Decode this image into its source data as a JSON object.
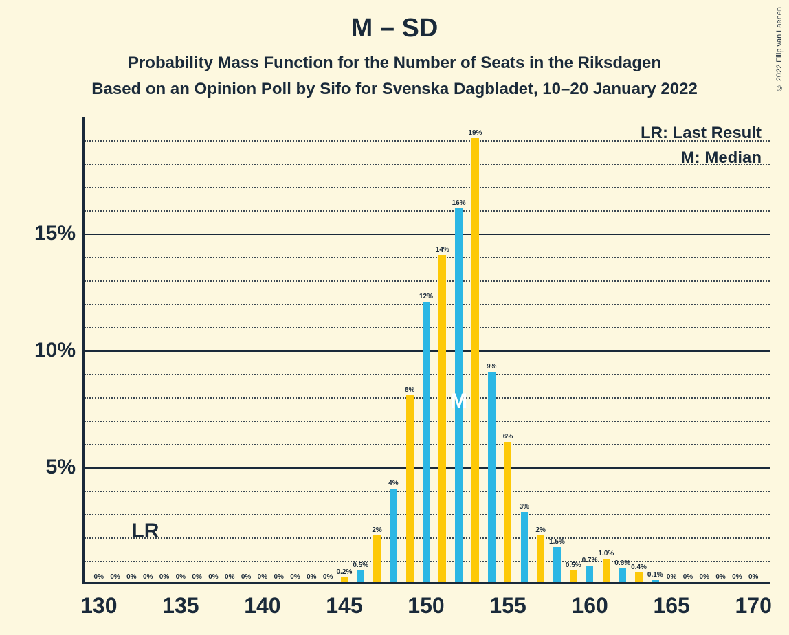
{
  "header": {
    "title": "M – SD",
    "subtitle1": "Probability Mass Function for the Number of Seats in the Riksdagen",
    "subtitle2": "Based on an Opinion Poll by Sifo for Svenska Dagbladet, 10–20 January 2022",
    "copyright": "© 2022 Filip van Laenen"
  },
  "legend": {
    "lr": "LR: Last Result",
    "m": "M: Median"
  },
  "markers": {
    "lr_text": "LR",
    "lr_x": 132,
    "m_text": "M",
    "m_x": 152
  },
  "chart": {
    "type": "bar",
    "background_color": "#fdf8df",
    "axis_color": "#1a2a3a",
    "grid_major_color": "#1a2a3a",
    "grid_minor_color": "#1a2a3a",
    "bar_colors": {
      "blue": "#2cb7e4",
      "yellow": "#fdc907"
    },
    "text_color": "#1a2a3a",
    "median_text_color": "#ffffff",
    "title_fontsize": 38,
    "subtitle_fontsize": 24,
    "axis_label_fontsize": 32,
    "y_label_fontsize": 30,
    "barlabel_fontsize": 10,
    "legend_fontsize": 24,
    "xlim": [
      129,
      171
    ],
    "ylim": [
      0,
      20
    ],
    "x_ticks": [
      130,
      135,
      140,
      145,
      150,
      155,
      160,
      165,
      170
    ],
    "y_major_ticks": [
      5,
      10,
      15
    ],
    "y_minor_step": 1,
    "bar_rel_width": 0.45,
    "x_values": [
      130,
      131,
      132,
      133,
      134,
      135,
      136,
      137,
      138,
      139,
      140,
      141,
      142,
      143,
      144,
      145,
      146,
      147,
      148,
      149,
      150,
      151,
      152,
      153,
      154,
      155,
      156,
      157,
      158,
      159,
      160,
      161,
      162,
      163,
      164,
      165,
      166,
      167,
      168,
      169,
      170
    ],
    "values": [
      0,
      0,
      0,
      0,
      0,
      0,
      0,
      0,
      0,
      0,
      0,
      0,
      0,
      0,
      0,
      0.2,
      0.5,
      2,
      4,
      8,
      12,
      14,
      16,
      19,
      9,
      6,
      3,
      2,
      1.5,
      0.5,
      0.7,
      1.0,
      0.6,
      0.4,
      0.1,
      0,
      0,
      0,
      0,
      0,
      0
    ],
    "labels": [
      "0%",
      "0%",
      "0%",
      "0%",
      "0%",
      "0%",
      "0%",
      "0%",
      "0%",
      "0%",
      "0%",
      "0%",
      "0%",
      "0%",
      "0%",
      "0.2%",
      "0.5%",
      "2%",
      "4%",
      "8%",
      "12%",
      "14%",
      "16%",
      "19%",
      "9%",
      "6%",
      "3%",
      "2%",
      "1.5%",
      "0.5%",
      "0.7%",
      "1.0%",
      "0.6%",
      "0.4%",
      "0.1%",
      "0%",
      "0%",
      "0%",
      "0%",
      "0%",
      "0%"
    ]
  }
}
